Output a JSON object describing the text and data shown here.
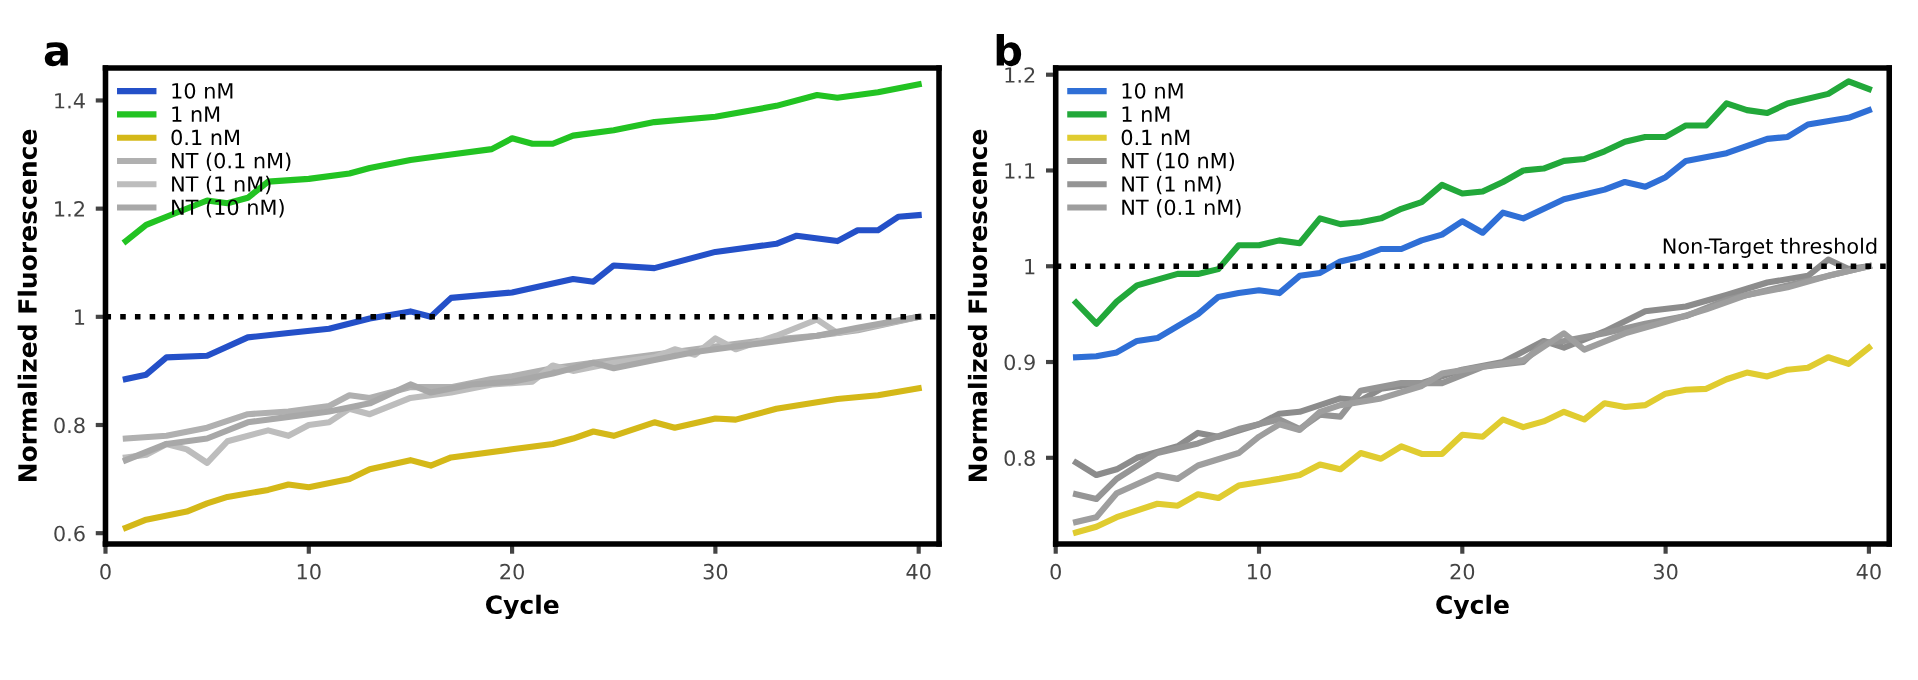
{
  "chart_data": [
    {
      "type": "line",
      "title": "a",
      "xlabel": "Cycle",
      "ylabel": "Normalized Fluorescence",
      "xlim": [
        0,
        41
      ],
      "xticks": [
        0,
        10,
        20,
        30,
        40
      ],
      "ylim": [
        0.58,
        1.46
      ],
      "yticks": [
        0.6,
        0.8,
        1,
        1.2,
        1.4
      ],
      "grid": false,
      "legend": "top left",
      "marker": "none",
      "line_style": "solid",
      "ref_lines": [
        {
          "axis": "y",
          "value": 1,
          "label": null,
          "color": "#000000",
          "line_style": "dotted"
        }
      ],
      "series": [
        {
          "name": "10 nM",
          "color": "#2450c8",
          "x": [
            1,
            2,
            3,
            5,
            7,
            9,
            11,
            13,
            15,
            16,
            17,
            20,
            23,
            24,
            25,
            27,
            30,
            33,
            34,
            36,
            37,
            38,
            39,
            40
          ],
          "values": [
            0.885,
            0.893,
            0.925,
            0.928,
            0.962,
            0.97,
            0.978,
            0.997,
            1.01,
            1.0,
            1.035,
            1.045,
            1.07,
            1.065,
            1.095,
            1.09,
            1.12,
            1.135,
            1.15,
            1.14,
            1.16,
            1.16,
            1.185,
            1.188
          ]
        },
        {
          "name": "1 nM",
          "color": "#22c322",
          "x": [
            1,
            2,
            3,
            5,
            6,
            7,
            8,
            10,
            12,
            13,
            15,
            17,
            19,
            20,
            21,
            22,
            23,
            25,
            27,
            30,
            33,
            35,
            36,
            38,
            40
          ],
          "values": [
            1.14,
            1.17,
            1.185,
            1.215,
            1.21,
            1.22,
            1.25,
            1.255,
            1.265,
            1.275,
            1.29,
            1.3,
            1.31,
            1.33,
            1.32,
            1.32,
            1.335,
            1.345,
            1.36,
            1.37,
            1.39,
            1.41,
            1.405,
            1.415,
            1.43
          ]
        },
        {
          "name": "0.1 nM",
          "color": "#d4b818",
          "x": [
            1,
            2,
            4,
            5,
            6,
            8,
            9,
            10,
            12,
            13,
            15,
            16,
            17,
            20,
            22,
            23,
            24,
            25,
            27,
            28,
            30,
            31,
            33,
            35,
            36,
            38,
            40
          ],
          "values": [
            0.61,
            0.625,
            0.64,
            0.655,
            0.667,
            0.68,
            0.69,
            0.685,
            0.7,
            0.718,
            0.735,
            0.725,
            0.74,
            0.755,
            0.765,
            0.775,
            0.788,
            0.78,
            0.805,
            0.795,
            0.812,
            0.81,
            0.83,
            0.842,
            0.848,
            0.855,
            0.868
          ]
        },
        {
          "name": "NT (0.1 nM)",
          "color": "#b0b0b0",
          "x": [
            1,
            3,
            5,
            7,
            9,
            11,
            12,
            13,
            15,
            17,
            19,
            20,
            22,
            25,
            28,
            30,
            32,
            35,
            37,
            40
          ],
          "values": [
            0.775,
            0.78,
            0.795,
            0.82,
            0.825,
            0.835,
            0.855,
            0.85,
            0.87,
            0.87,
            0.885,
            0.89,
            0.905,
            0.92,
            0.935,
            0.945,
            0.955,
            0.965,
            0.975,
            1.0
          ]
        },
        {
          "name": "NT (1 nM)",
          "color": "#bdbdbd",
          "x": [
            1,
            2,
            3,
            4,
            5,
            6,
            8,
            9,
            10,
            11,
            12,
            13,
            15,
            17,
            19,
            21,
            22,
            23,
            25,
            27,
            28,
            29,
            30,
            31,
            33,
            35,
            36,
            38,
            40
          ],
          "values": [
            0.74,
            0.745,
            0.765,
            0.755,
            0.73,
            0.77,
            0.79,
            0.78,
            0.8,
            0.805,
            0.83,
            0.82,
            0.85,
            0.86,
            0.875,
            0.88,
            0.91,
            0.9,
            0.915,
            0.925,
            0.94,
            0.93,
            0.96,
            0.94,
            0.965,
            0.995,
            0.97,
            0.985,
            1.0
          ]
        },
        {
          "name": "NT (10 nM)",
          "color": "#a8a8a8",
          "x": [
            1,
            3,
            5,
            7,
            9,
            11,
            13,
            15,
            16,
            18,
            20,
            22,
            24,
            25,
            27,
            29,
            31,
            33,
            35,
            37,
            40
          ],
          "values": [
            0.735,
            0.765,
            0.775,
            0.805,
            0.815,
            0.825,
            0.84,
            0.875,
            0.86,
            0.875,
            0.88,
            0.895,
            0.915,
            0.905,
            0.92,
            0.935,
            0.945,
            0.955,
            0.965,
            0.98,
            1.0
          ]
        }
      ]
    },
    {
      "type": "line",
      "title": "b",
      "xlabel": "Cycle",
      "ylabel": "Normalized Fluorescence",
      "xlim": [
        0,
        41
      ],
      "xticks": [
        0,
        10,
        20,
        30,
        40
      ],
      "ylim": [
        0.71,
        1.207
      ],
      "yticks": [
        0.8,
        0.9,
        1,
        1.1,
        1.2
      ],
      "grid": false,
      "legend": "top left",
      "marker": "none",
      "line_style": "solid",
      "ref_lines": [
        {
          "axis": "y",
          "value": 1,
          "label": "Non-Target threshold",
          "color": "#000000",
          "line_style": "dotted"
        }
      ],
      "series": [
        {
          "name": "10 nM",
          "color": "#2f6fd6",
          "x": [
            1,
            2,
            3,
            4,
            5,
            7,
            8,
            9,
            10,
            11,
            12,
            13,
            14,
            15,
            16,
            17,
            18,
            19,
            20,
            21,
            22,
            23,
            25,
            27,
            28,
            29,
            30,
            31,
            33,
            35,
            36,
            37,
            39,
            40
          ],
          "values": [
            0.905,
            0.906,
            0.91,
            0.922,
            0.925,
            0.95,
            0.968,
            0.972,
            0.975,
            0.972,
            0.99,
            0.993,
            1.005,
            1.01,
            1.018,
            1.018,
            1.027,
            1.033,
            1.047,
            1.035,
            1.056,
            1.05,
            1.07,
            1.08,
            1.088,
            1.083,
            1.093,
            1.11,
            1.118,
            1.133,
            1.135,
            1.148,
            1.155,
            1.163
          ]
        },
        {
          "name": "1 nM",
          "color": "#22a83a",
          "x": [
            1,
            2,
            3,
            4,
            6,
            7,
            8,
            9,
            10,
            11,
            12,
            13,
            14,
            15,
            16,
            17,
            18,
            19,
            20,
            21,
            22,
            23,
            24,
            25,
            26,
            27,
            28,
            29,
            30,
            31,
            32,
            33,
            34,
            35,
            36,
            38,
            39,
            40
          ],
          "values": [
            0.962,
            0.94,
            0.963,
            0.98,
            0.992,
            0.992,
            0.997,
            1.022,
            1.022,
            1.027,
            1.024,
            1.05,
            1.044,
            1.046,
            1.05,
            1.06,
            1.067,
            1.085,
            1.076,
            1.078,
            1.088,
            1.1,
            1.102,
            1.11,
            1.112,
            1.12,
            1.13,
            1.135,
            1.135,
            1.147,
            1.147,
            1.17,
            1.163,
            1.16,
            1.17,
            1.18,
            1.193,
            1.185
          ]
        },
        {
          "name": "0.1 nM",
          "color": "#e0cc30",
          "x": [
            1,
            2,
            3,
            5,
            6,
            7,
            8,
            9,
            11,
            12,
            13,
            14,
            15,
            16,
            17,
            18,
            19,
            20,
            21,
            22,
            23,
            24,
            25,
            26,
            27,
            28,
            29,
            30,
            31,
            32,
            33,
            34,
            35,
            36,
            37,
            38,
            39,
            40
          ],
          "values": [
            0.722,
            0.728,
            0.738,
            0.752,
            0.75,
            0.762,
            0.758,
            0.771,
            0.778,
            0.782,
            0.793,
            0.788,
            0.805,
            0.799,
            0.812,
            0.804,
            0.804,
            0.824,
            0.822,
            0.84,
            0.832,
            0.838,
            0.848,
            0.84,
            0.857,
            0.853,
            0.855,
            0.867,
            0.871,
            0.872,
            0.882,
            0.889,
            0.885,
            0.892,
            0.894,
            0.905,
            0.898,
            0.915
          ]
        },
        {
          "name": "NT (10 nM)",
          "color": "#8c8c8c",
          "x": [
            1,
            2,
            3,
            4,
            6,
            7,
            8,
            10,
            11,
            12,
            14,
            15,
            16,
            18,
            20,
            22,
            24,
            25,
            27,
            29,
            31,
            33,
            35,
            37,
            38,
            39,
            40
          ],
          "values": [
            0.795,
            0.782,
            0.788,
            0.8,
            0.812,
            0.826,
            0.822,
            0.835,
            0.846,
            0.848,
            0.862,
            0.86,
            0.872,
            0.878,
            0.892,
            0.9,
            0.922,
            0.915,
            0.932,
            0.953,
            0.958,
            0.97,
            0.983,
            0.99,
            1.007,
            0.997,
            1.0
          ]
        },
        {
          "name": "NT (1 nM)",
          "color": "#959595",
          "x": [
            1,
            2,
            3,
            5,
            7,
            9,
            11,
            12,
            13,
            14,
            15,
            17,
            19,
            21,
            23,
            24,
            25,
            27,
            29,
            31,
            33,
            35,
            37,
            40
          ],
          "values": [
            0.762,
            0.757,
            0.778,
            0.805,
            0.815,
            0.83,
            0.84,
            0.83,
            0.845,
            0.843,
            0.87,
            0.878,
            0.878,
            0.895,
            0.9,
            0.92,
            0.922,
            0.93,
            0.94,
            0.948,
            0.965,
            0.975,
            0.985,
            1.0
          ]
        },
        {
          "name": "NT (0.1 nM)",
          "color": "#9e9e9e",
          "x": [
            1,
            2,
            3,
            5,
            6,
            7,
            9,
            10,
            11,
            12,
            13,
            14,
            16,
            18,
            19,
            21,
            23,
            25,
            26,
            28,
            30,
            32,
            34,
            36,
            38,
            40
          ],
          "values": [
            0.733,
            0.738,
            0.763,
            0.782,
            0.778,
            0.792,
            0.805,
            0.822,
            0.835,
            0.829,
            0.848,
            0.855,
            0.862,
            0.875,
            0.888,
            0.895,
            0.902,
            0.93,
            0.913,
            0.93,
            0.942,
            0.955,
            0.97,
            0.978,
            0.99,
            1.0
          ]
        }
      ]
    }
  ]
}
